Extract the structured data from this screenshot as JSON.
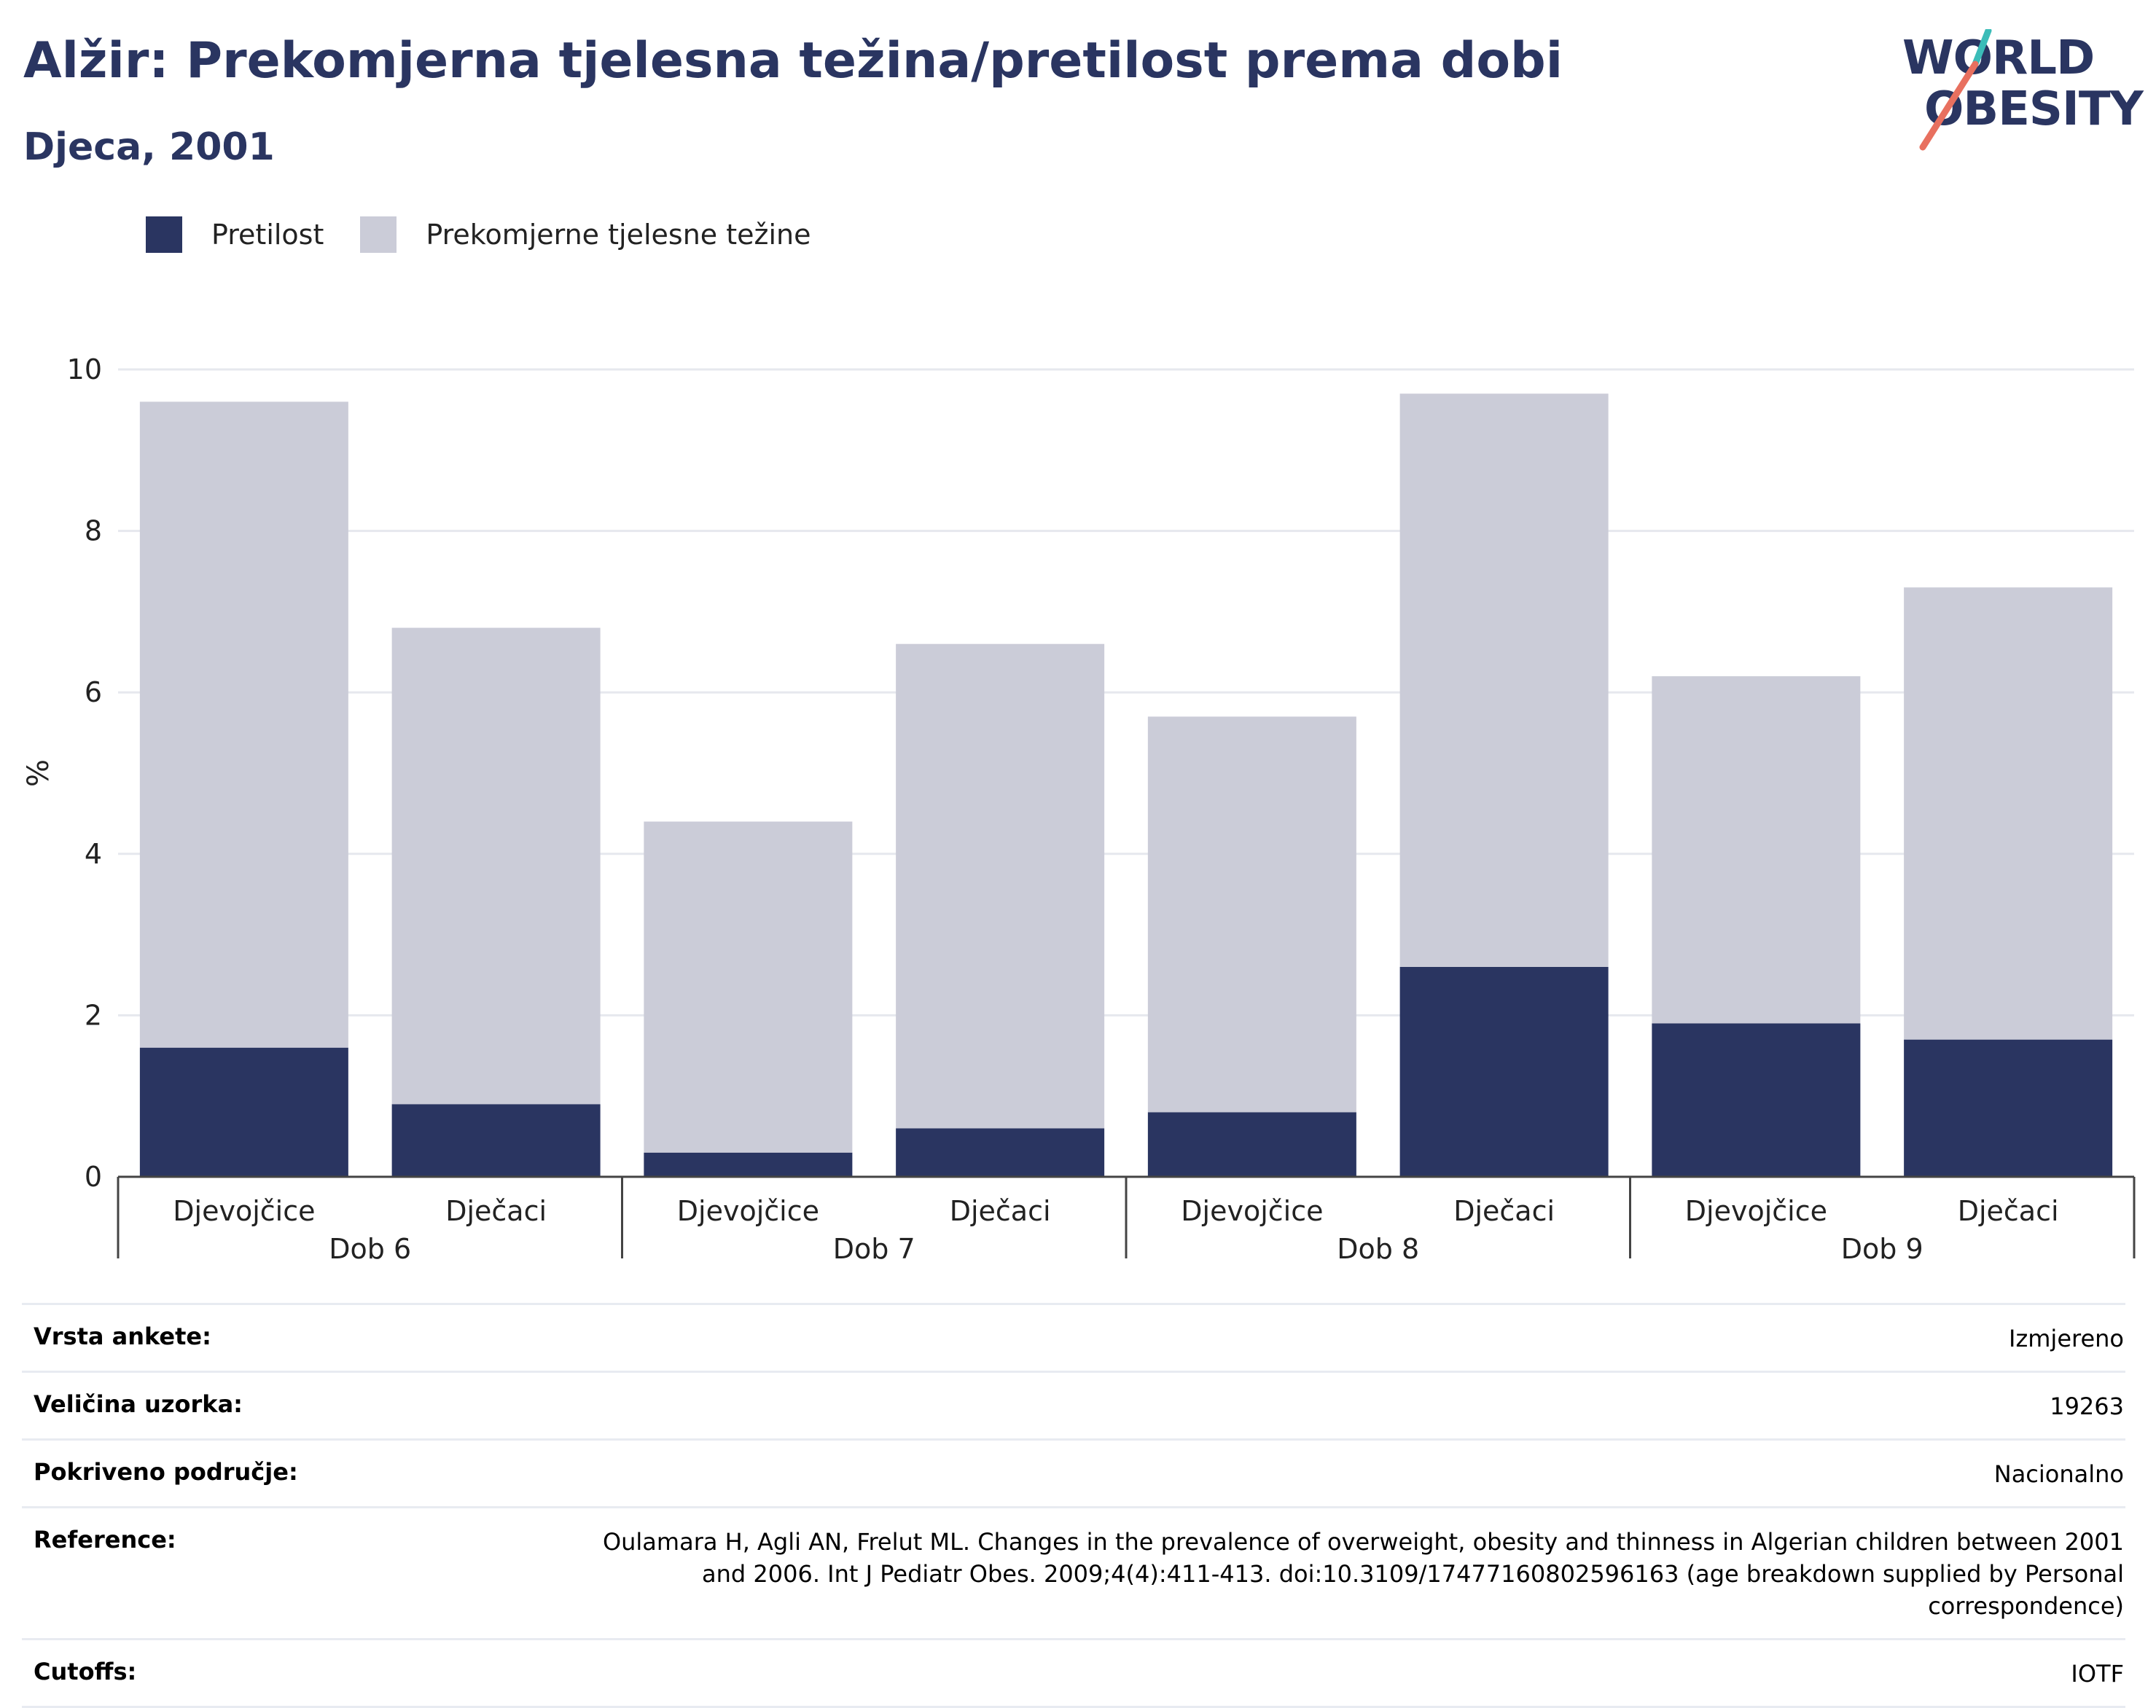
{
  "header": {
    "title": "Alžir: Prekomjerna tjelesna težina/pretilost prema dobi",
    "subtitle": "Djeca, 2001"
  },
  "logo": {
    "line1": "WORLD",
    "line2": "OBESITY"
  },
  "legend": [
    {
      "label": "Pretilost",
      "color": "#2a3561"
    },
    {
      "label": "Prekomjerne tjelesne težine",
      "color": "#cbccd8"
    }
  ],
  "chart_data": {
    "type": "bar",
    "stacked": true,
    "ylabel": "%",
    "ylim": [
      0,
      10
    ],
    "yticks": [
      0,
      2,
      4,
      6,
      8,
      10
    ],
    "grid": true,
    "legend_position": "top-left",
    "groups": [
      "Dob 6",
      "Dob 7",
      "Dob 8",
      "Dob 9"
    ],
    "categories": [
      "Djevojčice",
      "Dječaci",
      "Djevojčice",
      "Dječaci",
      "Djevojčice",
      "Dječaci",
      "Djevojčice",
      "Dječaci"
    ],
    "series": [
      {
        "name": "Pretilost",
        "color": "#2a3561",
        "values": [
          1.6,
          0.9,
          0.3,
          0.6,
          0.8,
          2.6,
          1.9,
          1.7
        ]
      },
      {
        "name": "Prekomjerne tjelesne težine",
        "color": "#cbccd8",
        "values": [
          8.0,
          5.9,
          4.1,
          6.0,
          4.9,
          7.1,
          4.3,
          5.6
        ]
      }
    ]
  },
  "info": [
    {
      "key": "Vrsta ankete:",
      "value": "Izmjereno"
    },
    {
      "key": "Veličina uzorka:",
      "value": "19263"
    },
    {
      "key": "Pokriveno područje:",
      "value": "Nacionalno"
    },
    {
      "key": "Reference:",
      "value": "Oulamara H, Agli AN, Frelut ML. Changes in the prevalence of overweight, obesity and thinness in Algerian children between 2001 and 2006. Int J Pediatr Obes. 2009;4(4):411-413. doi:10.3109/17477160802596163 (age breakdown supplied by Personal correspondence)"
    },
    {
      "key": "Cutoffs:",
      "value": "IOTF"
    }
  ]
}
